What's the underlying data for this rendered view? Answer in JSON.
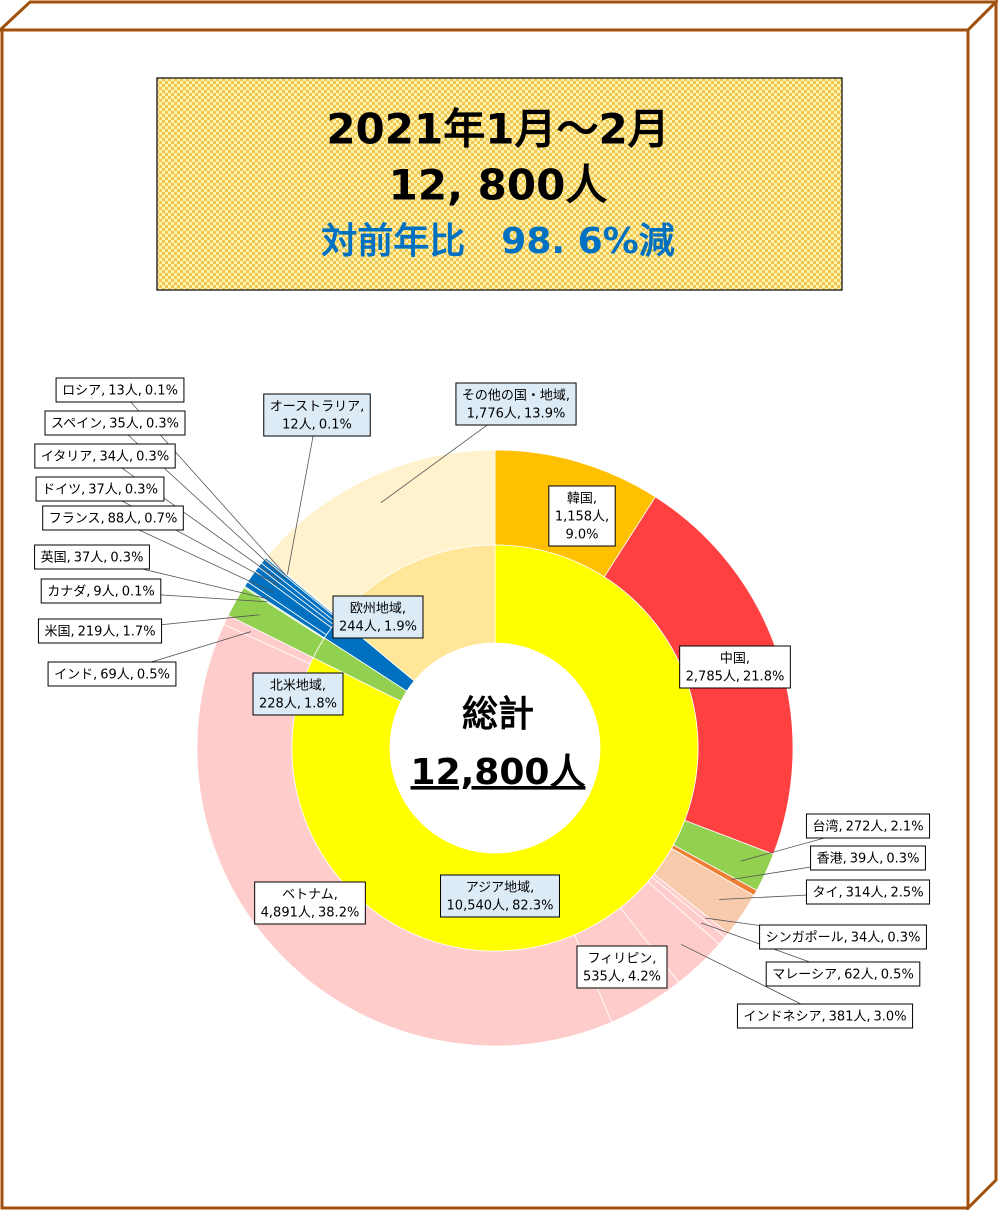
{
  "chart_data": {
    "type": "donut",
    "title_lines": [
      "2021年1月～2月",
      "12, 800人",
      "対前年比　98. 6%減"
    ],
    "center_label": "総計",
    "center_total": "12,800人",
    "total": 12800,
    "inner": {
      "categories": [
        "アジア地域,",
        "北米地域,",
        "欧州地域,"
      ],
      "values": [
        10540,
        228,
        244
      ],
      "value_labels": [
        "10,540人,",
        "228人,",
        "244人,"
      ],
      "percents": [
        82.3,
        1.8,
        1.9
      ],
      "percent_labels": [
        "82.3%",
        "1.8%",
        "1.9%"
      ],
      "colors": [
        "#ffff00",
        "#92d050",
        "#0070c0"
      ],
      "other_color": "#ffe699"
    },
    "outer": {
      "categories": [
        "韓国,",
        "中国,",
        "台湾,",
        "香港,",
        "タイ,",
        "シンガポール,",
        "マレーシア,",
        "インドネシア,",
        "フィリピン,",
        "ベトナム,",
        "インド,",
        "米国,",
        "カナダ,",
        "英国,",
        "フランス,",
        "ドイツ,",
        "イタリア,",
        "スペイン,",
        "ロシア,",
        "オーストラリア,",
        "その他の国・地域,"
      ],
      "values": [
        1158,
        2785,
        272,
        39,
        314,
        34,
        62,
        381,
        535,
        4891,
        69,
        219,
        9,
        37,
        88,
        37,
        34,
        35,
        13,
        12,
        1776
      ],
      "value_labels": [
        "1,158人,",
        "2,785人,",
        "272人,",
        "39人,",
        "314人,",
        "34人,",
        "62人,",
        "381人,",
        "535人,",
        "4,891人,",
        "69人,",
        "219人,",
        "9人,",
        "37人,",
        "88人,",
        "37人,",
        "34人,",
        "35人,",
        "13人,",
        "12人,",
        "1,776人,"
      ],
      "percents": [
        9.0,
        21.8,
        2.1,
        0.3,
        2.5,
        0.3,
        0.5,
        3.0,
        4.2,
        38.2,
        0.5,
        1.7,
        0.1,
        0.3,
        0.7,
        0.3,
        0.3,
        0.3,
        0.1,
        0.1,
        13.9
      ],
      "percent_labels": [
        "9.0%",
        "21.8%",
        "2.1%",
        "0.3%",
        "2.5%",
        "0.3%",
        "0.5%",
        "3.0%",
        "4.2%",
        "38.2%",
        "0.5%",
        "1.7%",
        "0.1%",
        "0.3%",
        "0.7%",
        "0.3%",
        "0.3%",
        "0.3%",
        "0.1%",
        "0.1%",
        "13.9%"
      ],
      "colors": [
        "#ffc000",
        "#ff4040",
        "#92d050",
        "#ed7d31",
        "#f8cbad",
        "#ffcccc",
        "#ffcccc",
        "#ffcccc",
        "#ffcccc",
        "#ffcccc",
        "#ffcccc",
        "#92d050",
        "#92d050",
        "#0070c0",
        "#0070c0",
        "#0070c0",
        "#0070c0",
        "#0070c0",
        "#0070c0",
        "#fff2cc",
        "#fff2cc"
      ]
    }
  }
}
